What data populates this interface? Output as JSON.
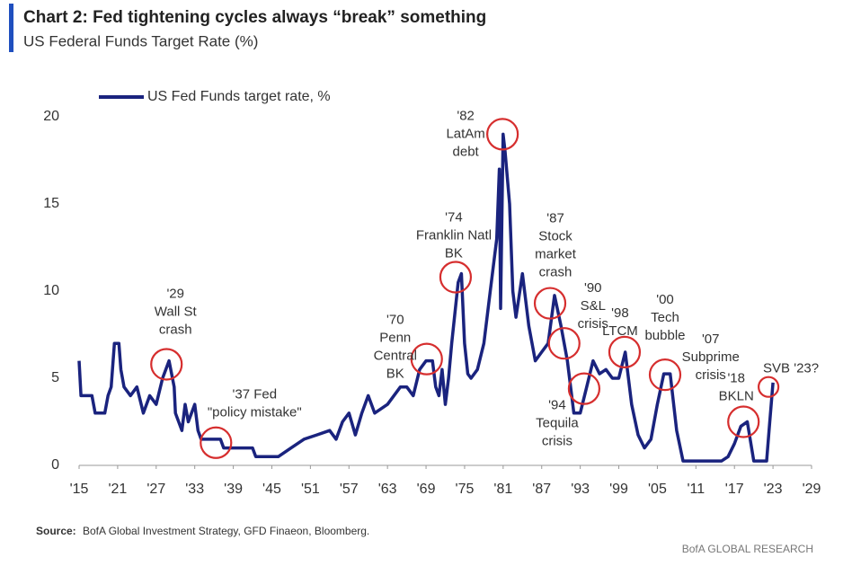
{
  "chart_data": {
    "type": "line",
    "title": "Chart 2: Fed tightening cycles always “break” something",
    "subtitle": "US Federal Funds Target Rate (%)",
    "series": [
      {
        "name": "US Fed Funds target rate, %",
        "color": "#1a237e",
        "x": [
          1915,
          1915.3,
          1917,
          1917.5,
          1919,
          1919.5,
          1920,
          1920.5,
          1921.2,
          1921.5,
          1922,
          1923,
          1924,
          1925,
          1926,
          1927,
          1928,
          1929,
          1929.8,
          1930,
          1931,
          1931.5,
          1932,
          1933,
          1933.5,
          1934,
          1937,
          1937.5,
          1942,
          1942.5,
          1946,
          1948,
          1950,
          1952,
          1954,
          1955,
          1956,
          1957,
          1958,
          1959,
          1960,
          1961,
          1963,
          1965,
          1966,
          1967,
          1968,
          1969,
          1970,
          1970.5,
          1971,
          1971.5,
          1972,
          1972.5,
          1973,
          1974,
          1974.5,
          1975,
          1975.5,
          1976,
          1977,
          1978,
          1979,
          1980,
          1980.4,
          1980.6,
          1981,
          1981.3,
          1982,
          1982.5,
          1983,
          1984,
          1985,
          1986,
          1987,
          1988,
          1989,
          1990,
          1991,
          1992,
          1993,
          1994,
          1995,
          1996,
          1997,
          1998,
          1999,
          2000,
          2001,
          2002,
          2003,
          2004,
          2005,
          2006,
          2007,
          2008,
          2009,
          2015,
          2016,
          2017,
          2018,
          2019,
          2020,
          2022,
          2022.5,
          2023
        ],
        "values": [
          6,
          4,
          4,
          3,
          3,
          4,
          4.5,
          7,
          7,
          5.5,
          4.5,
          4,
          4.5,
          3,
          4,
          3.5,
          5,
          6,
          4.5,
          3,
          2,
          3.5,
          2.5,
          3.5,
          2,
          1.5,
          1.5,
          1,
          1,
          0.5,
          0.5,
          1,
          1.5,
          1.75,
          2,
          1.5,
          2.5,
          3,
          1.75,
          3,
          4,
          3,
          3.5,
          4.5,
          4.5,
          4,
          5.5,
          6,
          6,
          4.5,
          4,
          5.5,
          3.5,
          5,
          7,
          10.5,
          11,
          7,
          5.25,
          5,
          5.5,
          7,
          10,
          13,
          17,
          9,
          19,
          18,
          15,
          10,
          8.5,
          11,
          8,
          6,
          6.5,
          7,
          9.75,
          8,
          6,
          3,
          3,
          4.5,
          6,
          5.25,
          5.5,
          5,
          5,
          6.5,
          3.5,
          1.75,
          1,
          1.5,
          3.5,
          5.25,
          5.25,
          2,
          0.25,
          0.25,
          0.5,
          1.25,
          2.25,
          2.5,
          0.25,
          0.25,
          2.5,
          4.75
        ]
      }
    ],
    "xlim": [
      1915,
      2029
    ],
    "xticks": [
      {
        "value": 1915,
        "label": "'15"
      },
      {
        "value": 1921,
        "label": "'21"
      },
      {
        "value": 1927,
        "label": "'27"
      },
      {
        "value": 1933,
        "label": "'33"
      },
      {
        "value": 1939,
        "label": "'39"
      },
      {
        "value": 1945,
        "label": "'45"
      },
      {
        "value": 1951,
        "label": "'51"
      },
      {
        "value": 1957,
        "label": "'57"
      },
      {
        "value": 1963,
        "label": "'63"
      },
      {
        "value": 1969,
        "label": "'69"
      },
      {
        "value": 1975,
        "label": "'75"
      },
      {
        "value": 1981,
        "label": "'81"
      },
      {
        "value": 1987,
        "label": "'87"
      },
      {
        "value": 1993,
        "label": "'93"
      },
      {
        "value": 1999,
        "label": "'99"
      },
      {
        "value": 2005,
        "label": "'05"
      },
      {
        "value": 2011,
        "label": "'11"
      },
      {
        "value": 2017,
        "label": "'17"
      },
      {
        "value": 2023,
        "label": "'23"
      },
      {
        "value": 2029,
        "label": "'29"
      }
    ],
    "ylim": [
      0,
      20
    ],
    "yticks": [
      0,
      5,
      10,
      15,
      20
    ],
    "grid": false,
    "annotation_color": "#d62e2e",
    "annotations": [
      {
        "text": [
          "'29",
          "Wall St",
          "crash"
        ],
        "x": 1928.6,
        "y": 5.8,
        "circled": true
      },
      {
        "text": [
          "'37 Fed",
          "\"policy mistake\""
        ],
        "x": 1936.3,
        "y": 1.3,
        "circled": true
      },
      {
        "text": [
          "'70",
          "Penn",
          "Central",
          "BK"
        ],
        "x": 1969.1,
        "y": 6.1,
        "circled": true
      },
      {
        "text": [
          "'74",
          "Franklin Natl",
          "BK"
        ],
        "x": 1973.6,
        "y": 10.8,
        "circled": true
      },
      {
        "text": [
          "'82",
          "LatAm",
          "debt"
        ],
        "x": 1980.9,
        "y": 19,
        "circled": true
      },
      {
        "text": [
          "'87",
          "Stock",
          "market",
          "crash"
        ],
        "x": 1988.3,
        "y": 9.3,
        "circled": true
      },
      {
        "text": [
          "'90",
          "S&L",
          "crisis"
        ],
        "x": 1990.5,
        "y": 7,
        "circled": true
      },
      {
        "text": [
          "'94",
          "Tequila",
          "crisis"
        ],
        "x": 1993.6,
        "y": 4.4,
        "circled": true
      },
      {
        "text": [
          "'98",
          "LTCM"
        ],
        "x": 1999.9,
        "y": 6.5,
        "circled": true
      },
      {
        "text": [
          "'00",
          "Tech",
          "bubble"
        ],
        "x": 2006.2,
        "y": 5.2,
        "circled": true
      },
      {
        "text": [
          "'07",
          "Subprime",
          "crisis"
        ],
        "x": 2007,
        "y": 5.25,
        "circled": false
      },
      {
        "text": [
          "'18",
          "BKLN"
        ],
        "x": 2018.4,
        "y": 2.5,
        "circled": true
      },
      {
        "text": [
          "SVB '23?"
        ],
        "x": 2022.3,
        "y": 4.5,
        "circled": true
      }
    ],
    "source_label": "Source:",
    "source": "BofA Global Investment Strategy, GFD Finaeon, Bloomberg.",
    "footer": "BofA GLOBAL RESEARCH"
  }
}
